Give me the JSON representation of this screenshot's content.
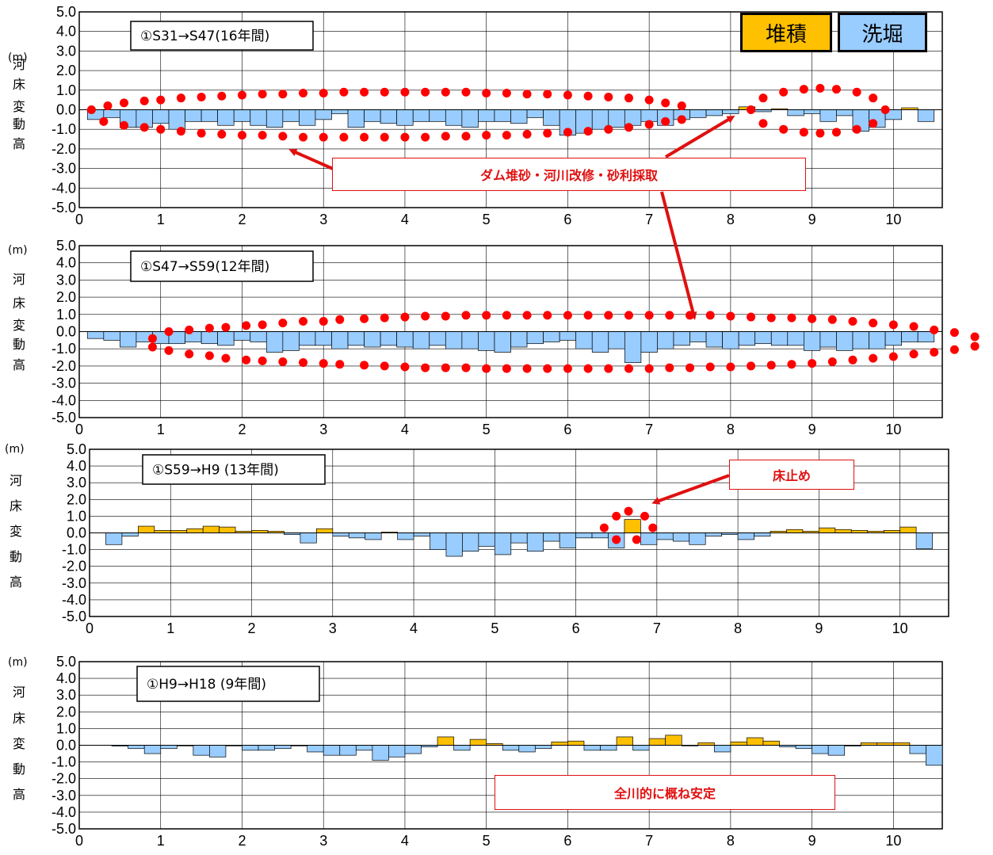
{
  "legend": [
    {
      "label": "堆積",
      "color": "#ffc000"
    },
    {
      "label": "洗堀",
      "color": "#99ccff"
    }
  ],
  "callouts": {
    "dam": "ダム堆砂・河川改修・砂利採取",
    "weir": "床止め",
    "stable": "全川的に概ね安定"
  },
  "chart_data": [
    {
      "type": "bar",
      "title": "①S31→S47(16年間)",
      "ylabel": "河床変動高",
      "yunit": "(m)",
      "ylim": [
        -5.0,
        5.0
      ],
      "xlim": [
        0,
        10.6
      ],
      "xticks": [
        0,
        1,
        2,
        3,
        4,
        5,
        6,
        7,
        8,
        9,
        10
      ],
      "yticks": [
        "5.0",
        "4.0",
        "3.0",
        "2.0",
        "1.0",
        "0.0",
        "-1.0",
        "-2.0",
        "-3.0",
        "-4.0",
        "-5.0"
      ],
      "grid": true,
      "bar_width": 0.2,
      "x": [
        0.2,
        0.4,
        0.6,
        0.8,
        1.0,
        1.2,
        1.4,
        1.6,
        1.8,
        2.0,
        2.2,
        2.4,
        2.6,
        2.8,
        3.0,
        3.2,
        3.4,
        3.6,
        3.8,
        4.0,
        4.2,
        4.4,
        4.6,
        4.8,
        5.0,
        5.2,
        5.4,
        5.6,
        5.8,
        6.0,
        6.2,
        6.4,
        6.6,
        6.8,
        7.0,
        7.2,
        7.4,
        7.6,
        7.8,
        8.0,
        8.2,
        8.4,
        8.6,
        8.8,
        9.0,
        9.2,
        9.4,
        9.6,
        9.8,
        10.0,
        10.2,
        10.4
      ],
      "values": [
        -0.5,
        -0.4,
        -0.9,
        -0.9,
        -0.7,
        -1.0,
        -0.6,
        -0.6,
        -0.8,
        -0.6,
        -0.8,
        -0.9,
        -0.6,
        -0.8,
        -0.5,
        -0.2,
        -0.9,
        -0.6,
        -0.7,
        -0.8,
        -0.6,
        -0.6,
        -0.8,
        -0.9,
        -0.6,
        -0.6,
        -0.7,
        -0.4,
        -0.8,
        -1.3,
        -1.2,
        -1.0,
        -0.9,
        -0.8,
        -0.6,
        -0.8,
        -0.5,
        -0.4,
        -0.3,
        -0.2,
        0.15,
        -0.1,
        0.05,
        -0.3,
        -0.2,
        -0.6,
        -0.3,
        -1.1,
        -0.9,
        -0.5,
        0.1,
        -0.6
      ],
      "dots": {
        "upper": [
          [
            0.35,
            0.2
          ],
          [
            0.55,
            0.35
          ],
          [
            0.8,
            0.45
          ],
          [
            1.0,
            0.5
          ],
          [
            1.25,
            0.6
          ],
          [
            1.5,
            0.65
          ],
          [
            1.75,
            0.7
          ],
          [
            2.0,
            0.75
          ],
          [
            2.25,
            0.8
          ],
          [
            2.5,
            0.8
          ],
          [
            2.75,
            0.85
          ],
          [
            3.0,
            0.85
          ],
          [
            3.25,
            0.9
          ],
          [
            3.5,
            0.9
          ],
          [
            3.75,
            0.9
          ],
          [
            4.0,
            0.9
          ],
          [
            4.25,
            0.9
          ],
          [
            4.5,
            0.9
          ],
          [
            4.75,
            0.9
          ],
          [
            5.0,
            0.85
          ],
          [
            5.25,
            0.85
          ],
          [
            5.5,
            0.8
          ],
          [
            5.75,
            0.8
          ],
          [
            6.0,
            0.75
          ],
          [
            6.25,
            0.7
          ],
          [
            6.5,
            0.65
          ],
          [
            6.75,
            0.6
          ],
          [
            7.0,
            0.5
          ],
          [
            7.2,
            0.35
          ],
          [
            7.4,
            0.2
          ]
        ],
        "lower": [
          [
            0.3,
            -0.6
          ],
          [
            0.55,
            -0.8
          ],
          [
            0.8,
            -0.9
          ],
          [
            1.0,
            -1.0
          ],
          [
            1.25,
            -1.1
          ],
          [
            1.5,
            -1.2
          ],
          [
            1.75,
            -1.25
          ],
          [
            2.0,
            -1.3
          ],
          [
            2.25,
            -1.3
          ],
          [
            2.5,
            -1.35
          ],
          [
            2.75,
            -1.4
          ],
          [
            3.0,
            -1.4
          ],
          [
            3.25,
            -1.4
          ],
          [
            3.5,
            -1.4
          ],
          [
            3.75,
            -1.4
          ],
          [
            4.0,
            -1.4
          ],
          [
            4.25,
            -1.4
          ],
          [
            4.5,
            -1.35
          ],
          [
            4.75,
            -1.35
          ],
          [
            5.0,
            -1.3
          ],
          [
            5.25,
            -1.3
          ],
          [
            5.5,
            -1.25
          ],
          [
            5.75,
            -1.2
          ],
          [
            6.0,
            -1.15
          ],
          [
            6.25,
            -1.1
          ],
          [
            6.5,
            -1.0
          ],
          [
            6.75,
            -0.9
          ],
          [
            7.0,
            -0.75
          ],
          [
            7.2,
            -0.6
          ],
          [
            7.4,
            -0.5
          ]
        ],
        "single": [
          [
            0.15,
            0.0
          ],
          [
            8.25,
            0.0
          ],
          [
            9.9,
            0.0
          ]
        ],
        "right_upper": [
          [
            8.4,
            0.6
          ],
          [
            8.65,
            0.9
          ],
          [
            8.9,
            1.05
          ],
          [
            9.1,
            1.1
          ],
          [
            9.3,
            1.05
          ],
          [
            9.55,
            0.9
          ],
          [
            9.75,
            0.6
          ]
        ],
        "right_lower": [
          [
            8.4,
            -0.7
          ],
          [
            8.65,
            -1.0
          ],
          [
            8.9,
            -1.15
          ],
          [
            9.1,
            -1.2
          ],
          [
            9.3,
            -1.15
          ],
          [
            9.55,
            -1.0
          ],
          [
            9.75,
            -0.7
          ]
        ]
      }
    },
    {
      "type": "bar",
      "title": "①S47→S59(12年間)",
      "ylabel": "河床変動高",
      "yunit": "(m)",
      "ylim": [
        -5.0,
        5.0
      ],
      "xlim": [
        0,
        10.6
      ],
      "xticks": [
        0,
        1,
        2,
        3,
        4,
        5,
        6,
        7,
        8,
        9,
        10
      ],
      "yticks": [
        "5.0",
        "4.0",
        "3.0",
        "2.0",
        "1.0",
        "0.0",
        "-1.0",
        "-2.0",
        "-3.0",
        "-4.0",
        "-5.0"
      ],
      "grid": true,
      "bar_width": 0.2,
      "x": [
        0.2,
        0.4,
        0.6,
        0.8,
        1.0,
        1.2,
        1.4,
        1.6,
        1.8,
        2.0,
        2.2,
        2.4,
        2.6,
        2.8,
        3.0,
        3.2,
        3.4,
        3.6,
        3.8,
        4.0,
        4.2,
        4.4,
        4.6,
        4.8,
        5.0,
        5.2,
        5.4,
        5.6,
        5.8,
        6.0,
        6.2,
        6.4,
        6.6,
        6.8,
        7.0,
        7.2,
        7.4,
        7.6,
        7.8,
        8.0,
        8.2,
        8.4,
        8.6,
        8.8,
        9.0,
        9.2,
        9.4,
        9.6,
        9.8,
        10.0,
        10.2,
        10.4
      ],
      "values": [
        -0.4,
        -0.5,
        -0.9,
        -0.6,
        -0.7,
        -0.7,
        -0.6,
        -0.7,
        -0.8,
        -0.5,
        -0.6,
        -1.2,
        -1.1,
        -0.8,
        -0.8,
        -1.0,
        -0.8,
        -0.9,
        -0.8,
        -0.9,
        -1.0,
        -0.8,
        -1.0,
        -1.0,
        -1.1,
        -1.2,
        -0.9,
        -0.7,
        -0.6,
        -0.5,
        -1.0,
        -1.2,
        -1.0,
        -1.8,
        -1.2,
        -1.0,
        -0.8,
        -0.6,
        -0.9,
        -1.0,
        -0.8,
        -0.7,
        -0.8,
        -0.8,
        -1.1,
        -0.9,
        -1.1,
        -1.0,
        -1.0,
        -0.8,
        -0.6,
        -0.6
      ],
      "dots": {
        "upper": [
          [
            1.1,
            0.0
          ],
          [
            1.35,
            0.1
          ],
          [
            1.6,
            0.2
          ],
          [
            1.8,
            0.25
          ],
          [
            2.05,
            0.35
          ],
          [
            2.25,
            0.4
          ],
          [
            2.5,
            0.5
          ],
          [
            2.75,
            0.6
          ],
          [
            3.0,
            0.6
          ],
          [
            3.2,
            0.7
          ],
          [
            3.5,
            0.75
          ],
          [
            3.75,
            0.8
          ],
          [
            4.0,
            0.85
          ],
          [
            4.25,
            0.9
          ],
          [
            4.5,
            0.9
          ],
          [
            4.75,
            0.95
          ],
          [
            5.0,
            0.95
          ],
          [
            5.25,
            0.95
          ],
          [
            5.5,
            0.95
          ],
          [
            5.75,
            0.95
          ],
          [
            6.0,
            0.95
          ],
          [
            6.25,
            0.95
          ],
          [
            6.5,
            0.95
          ],
          [
            6.75,
            0.95
          ],
          [
            7.0,
            0.95
          ],
          [
            7.25,
            0.95
          ],
          [
            7.5,
            0.95
          ],
          [
            7.75,
            0.95
          ],
          [
            8.0,
            0.9
          ],
          [
            8.25,
            0.85
          ],
          [
            8.5,
            0.8
          ],
          [
            8.75,
            0.8
          ],
          [
            9.0,
            0.75
          ],
          [
            9.25,
            0.7
          ],
          [
            9.5,
            0.6
          ],
          [
            9.75,
            0.5
          ],
          [
            10.0,
            0.4
          ],
          [
            10.25,
            0.3
          ]
        ],
        "lower": [
          [
            1.1,
            -1.1
          ],
          [
            1.35,
            -1.3
          ],
          [
            1.6,
            -1.4
          ],
          [
            1.8,
            -1.55
          ],
          [
            2.05,
            -1.65
          ],
          [
            2.25,
            -1.7
          ],
          [
            2.5,
            -1.75
          ],
          [
            2.75,
            -1.8
          ],
          [
            3.0,
            -1.85
          ],
          [
            3.2,
            -1.9
          ],
          [
            3.5,
            -1.95
          ],
          [
            3.75,
            -2.0
          ],
          [
            4.0,
            -2.05
          ],
          [
            4.25,
            -2.1
          ],
          [
            4.5,
            -2.1
          ],
          [
            4.75,
            -2.1
          ],
          [
            5.0,
            -2.15
          ],
          [
            5.25,
            -2.15
          ],
          [
            5.5,
            -2.15
          ],
          [
            5.75,
            -2.15
          ],
          [
            6.0,
            -2.15
          ],
          [
            6.25,
            -2.15
          ],
          [
            6.5,
            -2.15
          ],
          [
            6.75,
            -2.15
          ],
          [
            7.0,
            -2.15
          ],
          [
            7.25,
            -2.1
          ],
          [
            7.5,
            -2.1
          ],
          [
            7.75,
            -2.05
          ],
          [
            8.0,
            -2.05
          ],
          [
            8.25,
            -2.0
          ],
          [
            8.5,
            -1.95
          ],
          [
            8.75,
            -1.9
          ],
          [
            9.0,
            -1.85
          ],
          [
            9.25,
            -1.75
          ],
          [
            9.5,
            -1.65
          ],
          [
            9.75,
            -1.55
          ],
          [
            10.0,
            -1.45
          ],
          [
            10.25,
            -1.3
          ]
        ],
        "single": [
          [
            0.9,
            -0.4
          ],
          [
            0.9,
            -0.9
          ]
        ],
        "outside": [
          [
            10.5,
            0.1
          ],
          [
            10.75,
            -0.05
          ],
          [
            11.0,
            -0.3
          ],
          [
            10.5,
            -1.2
          ],
          [
            10.75,
            -1.05
          ],
          [
            11.0,
            -0.85
          ]
        ]
      }
    },
    {
      "type": "bar",
      "title": "①S59→H9 (13年間)",
      "ylabel": "河床変動高",
      "yunit": "(m)",
      "ylim": [
        -5.0,
        5.0
      ],
      "xlim": [
        0,
        10.6
      ],
      "xticks": [
        0,
        1,
        2,
        3,
        4,
        5,
        6,
        7,
        8,
        9,
        10
      ],
      "yticks": [
        "5.0",
        "4.0",
        "3.0",
        "2.0",
        "1.0",
        "0.0",
        "-1.0",
        "-2.0",
        "-3.0",
        "-4.0",
        "-5.0"
      ],
      "grid": true,
      "bar_width": 0.2,
      "x": [
        0.3,
        0.5,
        0.7,
        0.9,
        1.1,
        1.3,
        1.5,
        1.7,
        1.9,
        2.1,
        2.3,
        2.5,
        2.7,
        2.9,
        3.1,
        3.3,
        3.5,
        3.7,
        3.9,
        4.1,
        4.3,
        4.5,
        4.7,
        4.9,
        5.1,
        5.3,
        5.5,
        5.7,
        5.9,
        6.1,
        6.3,
        6.5,
        6.7,
        6.9,
        7.1,
        7.3,
        7.5,
        7.7,
        7.9,
        8.1,
        8.3,
        8.5,
        8.7,
        8.9,
        9.1,
        9.3,
        9.5,
        9.7,
        9.9,
        10.1,
        10.3
      ],
      "values": [
        -0.7,
        -0.2,
        0.4,
        0.15,
        0.15,
        0.25,
        0.4,
        0.35,
        0.1,
        0.15,
        0.1,
        -0.1,
        -0.6,
        0.25,
        -0.2,
        -0.3,
        -0.4,
        0.05,
        -0.4,
        -0.2,
        -1.0,
        -1.4,
        -1.1,
        -0.8,
        -1.3,
        -0.6,
        -1.1,
        -0.5,
        -0.9,
        -0.3,
        -0.3,
        -0.9,
        0.8,
        -0.7,
        -0.4,
        -0.5,
        -0.7,
        -0.2,
        -0.1,
        -0.4,
        -0.2,
        0.1,
        0.2,
        0.1,
        0.3,
        0.2,
        0.15,
        0.1,
        0.15,
        0.35,
        -0.95
      ],
      "dots": {
        "weir": [
          [
            6.35,
            0.3
          ],
          [
            6.5,
            1.0
          ],
          [
            6.65,
            1.3
          ],
          [
            6.85,
            1.0
          ],
          [
            6.95,
            0.3
          ],
          [
            6.5,
            -0.4
          ],
          [
            6.75,
            -0.4
          ]
        ]
      }
    },
    {
      "type": "bar",
      "title": "①H9→H18 (9年間)",
      "ylabel": "河床変動高",
      "yunit": "(m)",
      "ylim": [
        -5.0,
        5.0
      ],
      "xlim": [
        0,
        10.6
      ],
      "xticks": [
        0,
        1,
        2,
        3,
        4,
        5,
        6,
        7,
        8,
        9,
        10
      ],
      "yticks": [
        "5.0",
        "4.0",
        "3.0",
        "2.0",
        "1.0",
        "0.0",
        "-1.0",
        "-2.0",
        "-3.0",
        "-4.0",
        "-5.0"
      ],
      "grid": true,
      "bar_width": 0.2,
      "x": [
        0.5,
        0.7,
        0.9,
        1.1,
        1.3,
        1.5,
        1.7,
        1.9,
        2.1,
        2.3,
        2.5,
        2.7,
        2.9,
        3.1,
        3.3,
        3.5,
        3.7,
        3.9,
        4.1,
        4.3,
        4.5,
        4.7,
        4.9,
        5.1,
        5.3,
        5.5,
        5.7,
        5.9,
        6.1,
        6.3,
        6.5,
        6.7,
        6.9,
        7.1,
        7.3,
        7.5,
        7.7,
        7.9,
        8.1,
        8.3,
        8.5,
        8.7,
        8.9,
        9.1,
        9.3,
        9.5,
        9.7,
        9.9,
        10.1,
        10.3,
        10.5
      ],
      "values": [
        -0.05,
        -0.2,
        -0.5,
        -0.2,
        0.0,
        -0.6,
        -0.7,
        0.0,
        -0.3,
        -0.3,
        -0.2,
        0.0,
        -0.4,
        -0.6,
        -0.6,
        -0.3,
        -0.9,
        -0.7,
        -0.5,
        -0.1,
        0.5,
        -0.3,
        0.35,
        0.1,
        -0.3,
        -0.4,
        -0.2,
        0.2,
        0.25,
        -0.3,
        -0.3,
        0.5,
        -0.3,
        0.4,
        0.6,
        0.0,
        0.15,
        -0.4,
        0.2,
        0.45,
        0.25,
        -0.1,
        -0.2,
        -0.5,
        -0.6,
        -0.05,
        0.15,
        0.15,
        0.15,
        -0.5,
        -1.2
      ]
    }
  ]
}
